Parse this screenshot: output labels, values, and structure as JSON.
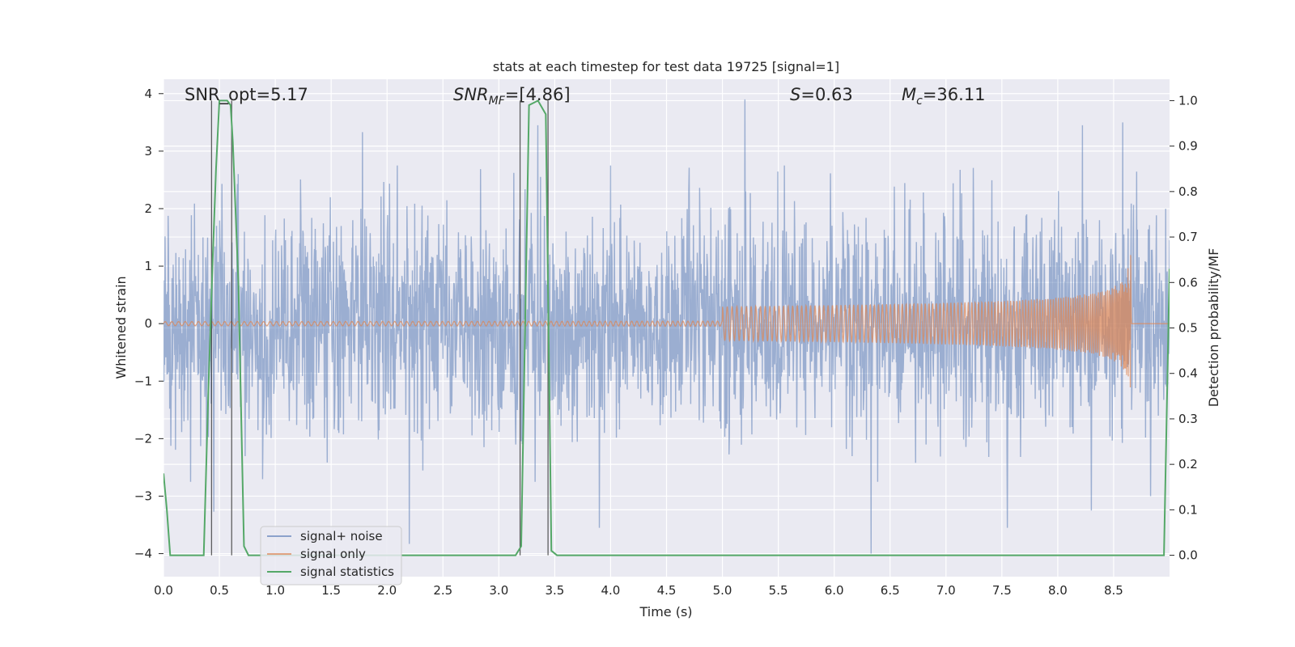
{
  "chart_data": {
    "type": "line",
    "title": "stats at each timestep for test data 19725 [signal=1]",
    "xlabel": "Time (s)",
    "ylabel": "Whitened strain",
    "y2label": "Detection probability/MF",
    "xlim": [
      0,
      9.0
    ],
    "ylim": [
      -4.4,
      4.25
    ],
    "y2lim": [
      -0.047,
      1.047
    ],
    "x_ticks": [
      "0.0",
      "0.5",
      "1.0",
      "1.5",
      "2.0",
      "2.5",
      "3.0",
      "3.5",
      "4.0",
      "4.5",
      "5.0",
      "5.5",
      "6.0",
      "6.5",
      "7.0",
      "7.5",
      "8.0",
      "8.5"
    ],
    "y_ticks": [
      "4",
      "3",
      "2",
      "1",
      "0",
      "−1",
      "−2",
      "−3",
      "−4"
    ],
    "y2_ticks": [
      "1.0",
      "0.9",
      "0.8",
      "0.7",
      "0.6",
      "0.5",
      "0.4",
      "0.3",
      "0.2",
      "0.1",
      "0.0"
    ],
    "grid": true,
    "legend_position": "lower-left",
    "annotations": {
      "snr_opt": "SNR_opt=5.17",
      "snr_mf_base": "SNR",
      "snr_mf_sub": "MF",
      "snr_mf_rest": "=[4.86]",
      "s_base": "S",
      "s_rest": "=0.63",
      "mc_base": "M",
      "mc_sub": "c",
      "mc_rest": "=36.11"
    },
    "vlines_x": [
      0.43,
      0.61,
      3.19,
      3.44
    ],
    "series": [
      {
        "name": "signal+ noise",
        "color": "#4c72b0",
        "description_kind": "noise band",
        "typical_amplitude": 2.2,
        "extremes": [
          [
            0.45,
            -3.27
          ],
          [
            0.67,
            2.6
          ],
          [
            1.78,
            3.33
          ],
          [
            2.2,
            -3.83
          ],
          [
            3.35,
            3.45
          ],
          [
            3.9,
            -3.55
          ],
          [
            5.2,
            3.9
          ],
          [
            6.33,
            -4.0
          ],
          [
            7.55,
            -3.55
          ],
          [
            8.22,
            3.45
          ],
          [
            8.3,
            -3.25
          ],
          [
            8.58,
            3.5
          ],
          [
            8.83,
            -3.0
          ]
        ]
      },
      {
        "name": "signal only",
        "color": "#dd8452",
        "chirp_start": 5.0,
        "chirp_peak_time": 8.66,
        "chirp_peak_amplitude": 1.3
      },
      {
        "name": "signal statistics",
        "color": "#55a868",
        "axis": "right",
        "x": [
          0.0,
          0.03,
          0.06,
          0.1,
          0.2,
          0.3,
          0.36,
          0.4,
          0.44,
          0.47,
          0.5,
          0.57,
          0.6,
          0.62,
          0.67,
          0.72,
          0.76,
          0.85,
          1.0,
          2.0,
          3.0,
          3.15,
          3.2,
          3.27,
          3.35,
          3.42,
          3.47,
          3.52,
          3.6,
          3.8,
          3.9,
          5.0,
          8.0,
          8.95,
          9.0
        ],
        "y": [
          0.18,
          0.1,
          0.0,
          0.0,
          0.0,
          0.0,
          0.0,
          0.35,
          0.65,
          0.85,
          1.0,
          1.0,
          0.99,
          0.91,
          0.6,
          0.02,
          0.0,
          0.0,
          0.0,
          0.0,
          0.0,
          0.0,
          0.02,
          0.99,
          1.0,
          0.97,
          0.01,
          0.0,
          0.0,
          0.0,
          0.0,
          0.0,
          0.0,
          0.0,
          0.63
        ]
      }
    ]
  }
}
